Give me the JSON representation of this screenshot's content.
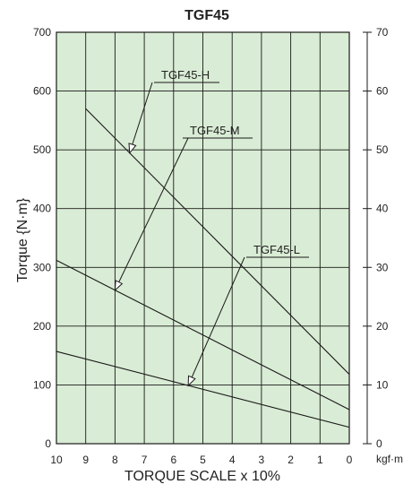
{
  "chart_data": {
    "type": "line",
    "title": "TGF45",
    "xlabel": "TORQUE SCALE x 10%",
    "ylabel": "Torque {N·m}",
    "y2unit": "kgf·m",
    "xlim": [
      10,
      0
    ],
    "ylim": [
      0,
      700
    ],
    "y2lim": [
      0,
      70
    ],
    "x_ticks": [
      "10",
      "9",
      "8",
      "7",
      "6",
      "5",
      "4",
      "3",
      "2",
      "1",
      "0"
    ],
    "y_ticks": [
      "0",
      "100",
      "200",
      "300",
      "400",
      "500",
      "600",
      "700"
    ],
    "y2_ticks": [
      "0",
      "10",
      "20",
      "30",
      "40",
      "50",
      "60",
      "70"
    ],
    "grid": true,
    "background": "#d9ecd5",
    "line_color": "#1a1a1a",
    "series": [
      {
        "name": "TGF45-H",
        "x": [
          9,
          0
        ],
        "y": [
          570,
          118
        ]
      },
      {
        "name": "TGF45-M",
        "x": [
          10,
          0
        ],
        "y": [
          312,
          58
        ]
      },
      {
        "name": "TGF45-L",
        "x": [
          10,
          0
        ],
        "y": [
          157,
          28
        ]
      }
    ],
    "annotations": [
      {
        "text": "TGF45-H",
        "series": 0,
        "at_x": 7.5
      },
      {
        "text": "TGF45-M",
        "series": 1,
        "at_x": 8.0
      },
      {
        "text": "TGF45-L",
        "series": 2,
        "at_x": 5.5
      }
    ]
  }
}
